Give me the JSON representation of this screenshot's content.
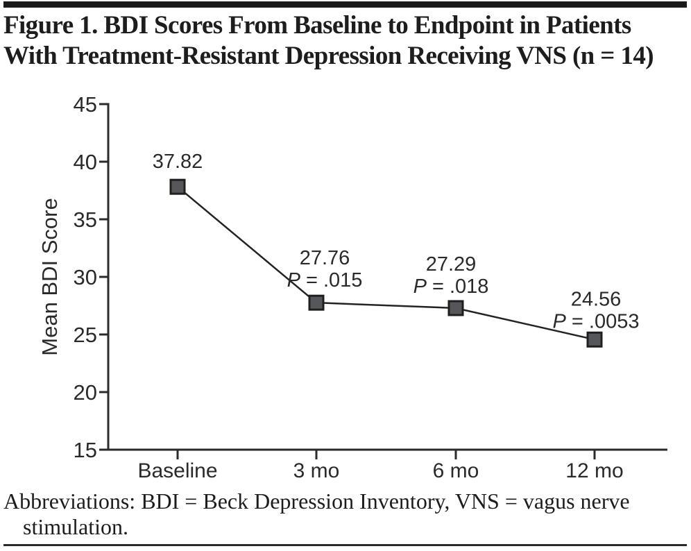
{
  "figure": {
    "title_lines": [
      "Figure 1. BDI Scores From Baseline to Endpoint in Patients",
      "With Treatment-Resistant Depression Receiving VNS (n = 14)"
    ],
    "abbreviation_lines": [
      "Abbreviations: BDI = Beck Depression Inventory, VNS = vagus nerve",
      "stimulation."
    ]
  },
  "chart_data": {
    "type": "line",
    "title": "Figure 1. BDI Scores From Baseline to Endpoint in Patients With Treatment-Resistant Depression Receiving VNS (n = 14)",
    "xlabel": "",
    "ylabel": "Mean BDI Score",
    "categories": [
      "Baseline",
      "3 mo",
      "6 mo",
      "12 mo"
    ],
    "series": [
      {
        "name": "Mean BDI Score",
        "values": [
          37.82,
          27.76,
          27.29,
          24.56
        ]
      }
    ],
    "value_labels": [
      "37.82",
      "27.76",
      "27.29",
      "24.56"
    ],
    "p_value_labels": [
      null,
      "P = .015",
      "P = .018",
      "P = .0053"
    ],
    "y_ticks": [
      15,
      20,
      25,
      30,
      35,
      40,
      45
    ],
    "ylim": [
      15,
      45
    ],
    "grid": false,
    "legend": false,
    "marker": "square"
  },
  "colors": {
    "ink": "#231f20",
    "marker_fill": "#56575a",
    "marker_border": "#1f1f1f",
    "line": "#232323",
    "background": "#ffffff"
  }
}
